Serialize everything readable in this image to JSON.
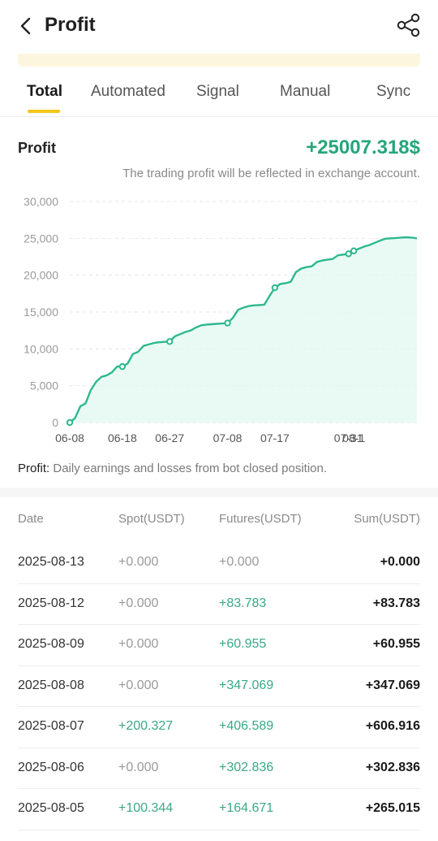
{
  "header": {
    "title": "Profit",
    "back_icon": "chevron-left-icon",
    "share_icon": "share-icon"
  },
  "tabs": [
    {
      "label": "Total",
      "active": true
    },
    {
      "label": "Automated",
      "active": false
    },
    {
      "label": "Signal",
      "active": false
    },
    {
      "label": "Manual",
      "active": false
    },
    {
      "label": "Sync",
      "active": false
    }
  ],
  "summary": {
    "label": "Profit",
    "total": "+25007.318$",
    "note": "The trading profit will be reflected in exchange account."
  },
  "chart_data": {
    "type": "area",
    "title": "",
    "xlabel": "",
    "ylabel": "",
    "ylim": [
      0,
      30000
    ],
    "yticks": [
      "0",
      "5,000",
      "10,000",
      "15,000",
      "20,000",
      "25,000",
      "30,000"
    ],
    "xticks": [
      "06-08",
      "06-18",
      "06-27",
      "07-08",
      "07-17",
      "07-31",
      "08-1"
    ],
    "grid": true,
    "line_color": "#2eb88e",
    "fill_color": "#e4f7f0",
    "x": [
      "06-08",
      "06-09",
      "06-10",
      "06-11",
      "06-12",
      "06-13",
      "06-14",
      "06-15",
      "06-16",
      "06-17",
      "06-18",
      "06-19",
      "06-20",
      "06-21",
      "06-22",
      "06-23",
      "06-24",
      "06-25",
      "06-26",
      "06-27",
      "06-28",
      "06-29",
      "06-30",
      "07-01",
      "07-02",
      "07-03",
      "07-04",
      "07-05",
      "07-06",
      "07-07",
      "07-08",
      "07-09",
      "07-10",
      "07-11",
      "07-12",
      "07-13",
      "07-14",
      "07-15",
      "07-16",
      "07-17",
      "07-18",
      "07-19",
      "07-20",
      "07-21",
      "07-22",
      "07-23",
      "07-24",
      "07-25",
      "07-26",
      "07-27",
      "07-28",
      "07-29",
      "07-30",
      "07-31",
      "08-01",
      "08-02",
      "08-03",
      "08-04",
      "08-05",
      "08-06",
      "08-07",
      "08-08",
      "08-09",
      "08-10",
      "08-11",
      "08-12",
      "08-13"
    ],
    "values": [
      0,
      600,
      2200,
      2600,
      4400,
      5500,
      6200,
      6400,
      6800,
      7600,
      7600,
      8000,
      9300,
      9600,
      10400,
      10600,
      10800,
      10900,
      10950,
      11000,
      11700,
      12000,
      12300,
      12500,
      12900,
      13200,
      13300,
      13350,
      13400,
      13450,
      13500,
      14200,
      15300,
      15600,
      15800,
      15900,
      15950,
      16000,
      17200,
      18300,
      18800,
      18900,
      19100,
      20400,
      20900,
      21100,
      21200,
      21800,
      22000,
      22100,
      22200,
      22700,
      22800,
      22900,
      23300,
      23600,
      23900,
      24100,
      24400,
      24700,
      24950,
      25000,
      25050,
      25100,
      25150,
      25100,
      25007
    ]
  },
  "footnote": {
    "label": "Profit:",
    "text": " Daily earnings and losses from bot closed position."
  },
  "table": {
    "headers": {
      "date": "Date",
      "spot": "Spot(USDT)",
      "futures": "Futures(USDT)",
      "sum": "Sum(USDT)"
    },
    "rows": [
      {
        "date": "2025-08-13",
        "spot": "+0.000",
        "futures": "+0.000",
        "sum": "+0.000",
        "spot_pos": false,
        "fut_pos": false
      },
      {
        "date": "2025-08-12",
        "spot": "+0.000",
        "futures": "+83.783",
        "sum": "+83.783",
        "spot_pos": false,
        "fut_pos": true
      },
      {
        "date": "2025-08-09",
        "spot": "+0.000",
        "futures": "+60.955",
        "sum": "+60.955",
        "spot_pos": false,
        "fut_pos": true
      },
      {
        "date": "2025-08-08",
        "spot": "+0.000",
        "futures": "+347.069",
        "sum": "+347.069",
        "spot_pos": false,
        "fut_pos": true
      },
      {
        "date": "2025-08-07",
        "spot": "+200.327",
        "futures": "+406.589",
        "sum": "+606.916",
        "spot_pos": true,
        "fut_pos": true
      },
      {
        "date": "2025-08-06",
        "spot": "+0.000",
        "futures": "+302.836",
        "sum": "+302.836",
        "spot_pos": false,
        "fut_pos": true
      },
      {
        "date": "2025-08-05",
        "spot": "+100.344",
        "futures": "+164.671",
        "sum": "+265.015",
        "spot_pos": true,
        "fut_pos": true
      }
    ]
  },
  "colors": {
    "accent": "#f5c518",
    "positive": "#27a57c"
  }
}
